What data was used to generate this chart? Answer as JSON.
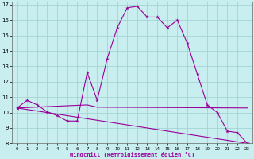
{
  "xlabel": "Windchill (Refroidissement éolien,°C)",
  "bg_color": "#c8eef0",
  "grid_color": "#9ecfcf",
  "line_color": "#990099",
  "xlim": [
    -0.5,
    23.5
  ],
  "ylim": [
    8,
    17.2
  ],
  "yticks": [
    8,
    9,
    10,
    11,
    12,
    13,
    14,
    15,
    16,
    17
  ],
  "xticks": [
    0,
    1,
    2,
    3,
    4,
    5,
    6,
    7,
    8,
    9,
    10,
    11,
    12,
    13,
    14,
    15,
    16,
    17,
    18,
    19,
    20,
    21,
    22,
    23
  ],
  "series1_x": [
    0,
    1,
    2,
    3,
    4,
    5,
    6,
    7,
    8,
    9,
    10,
    11,
    12,
    13,
    14,
    15,
    16,
    17,
    18,
    19,
    20,
    21,
    22,
    23
  ],
  "series1_y": [
    10.3,
    10.8,
    10.5,
    10.05,
    9.8,
    9.45,
    9.45,
    12.6,
    10.8,
    13.5,
    15.5,
    16.8,
    16.9,
    16.2,
    16.2,
    15.5,
    16.0,
    14.5,
    12.5,
    10.5,
    10.0,
    8.8,
    8.7,
    8.0
  ],
  "series2_x": [
    0,
    23
  ],
  "series2_y": [
    10.3,
    8.0
  ],
  "series3_x": [
    0,
    7,
    8,
    23
  ],
  "series3_y": [
    10.3,
    10.5,
    10.35,
    10.3
  ],
  "marker_x1": [
    0,
    1,
    2,
    3,
    4,
    5,
    6,
    7,
    8,
    9,
    10,
    11,
    12,
    13,
    14,
    15,
    16,
    17,
    18,
    19,
    20,
    21,
    22,
    23
  ],
  "marker_y1": [
    10.3,
    10.8,
    10.5,
    10.05,
    9.8,
    9.45,
    9.45,
    12.6,
    10.8,
    13.5,
    15.5,
    16.8,
    16.9,
    16.2,
    16.2,
    15.5,
    16.0,
    14.5,
    12.5,
    10.5,
    10.0,
    8.8,
    8.7,
    8.0
  ]
}
